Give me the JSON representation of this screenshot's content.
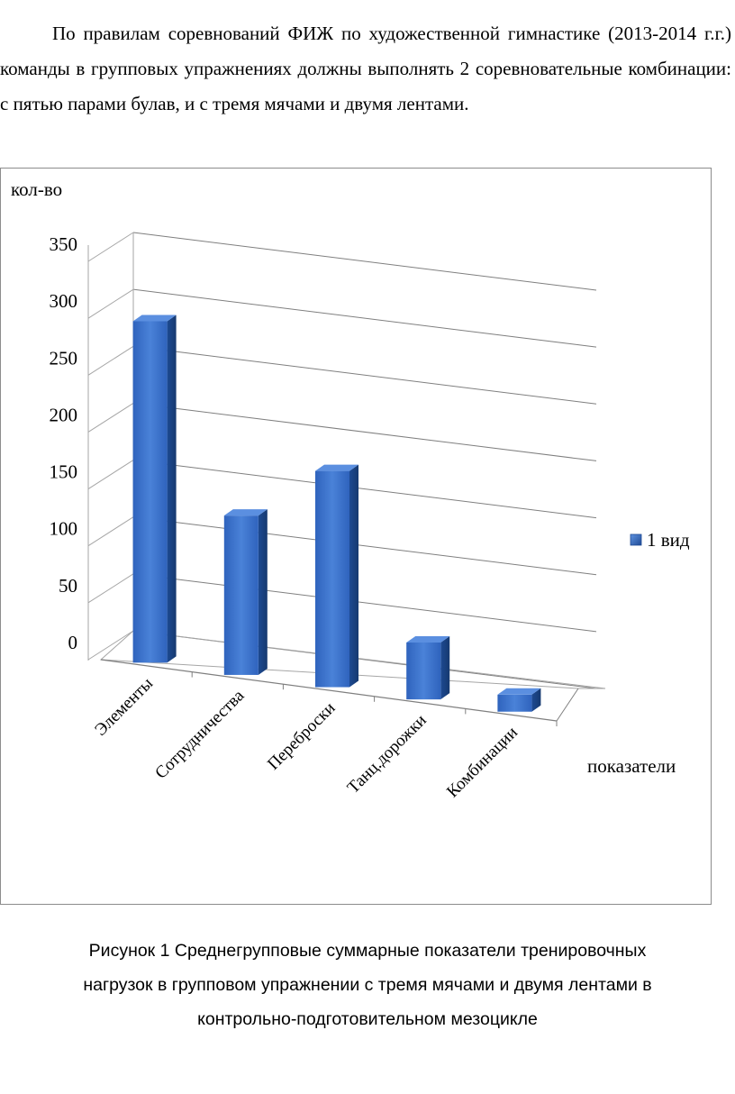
{
  "intro_text": "По правилам соревнований ФИЖ по художественной гимнастике (2013-2014 г.г.) команды в групповых упражнениях должны выполнять 2 соревновательные комбинации: с пятью парами булав, и с тремя мячами и двумя лентами.",
  "chart_data": {
    "type": "bar",
    "ylabel": "кол-во",
    "xlabel": "показатели",
    "categories": [
      "Элементы",
      "Сотрудничества",
      "Переброски",
      "Танц.дорожки",
      "Комбинации"
    ],
    "series": [
      {
        "name": "1 вид",
        "values": [
          300,
          140,
          190,
          50,
          15
        ]
      }
    ],
    "ylim": [
      0,
      350
    ],
    "yticks": [
      0,
      50,
      100,
      150,
      200,
      250,
      300,
      350
    ],
    "grid": true,
    "legend": "right",
    "colors": {
      "bar_front": "#3f76cf",
      "bar_side": "#1f4a94",
      "bar_top": "#5b8fe0",
      "grid": "#7f7f7f"
    }
  },
  "caption": {
    "line1": "Рисунок 1 Среднегрупповые суммарные показатели тренировочных",
    "line2": "нагрузок в групповом упражнении с тремя мячами и двумя лентами в",
    "line3": "контрольно-подготовительном  мезоцикле"
  }
}
